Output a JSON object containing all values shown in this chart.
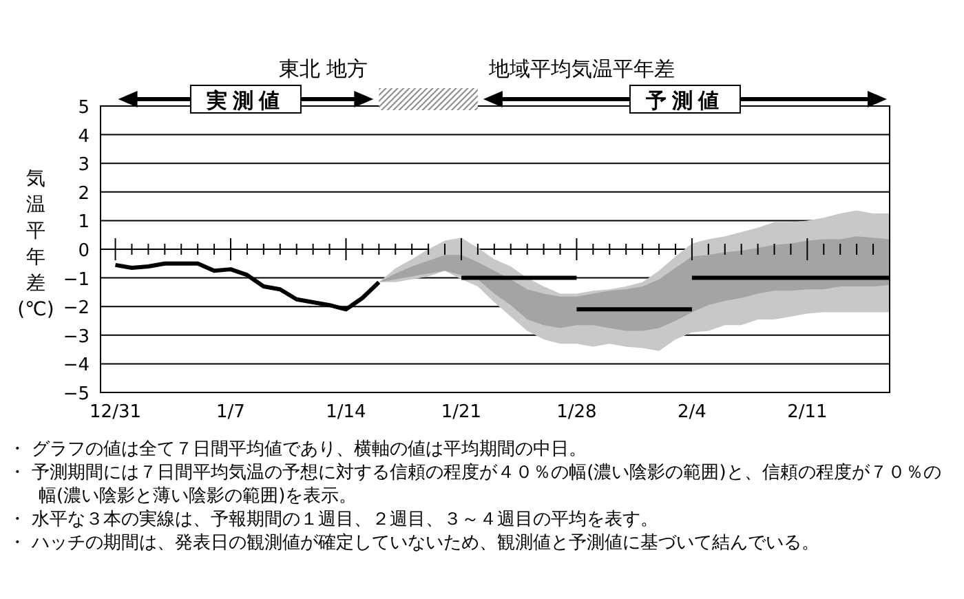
{
  "chart_data": {
    "type": "line",
    "title": "東北 地方",
    "subtitle": "地域平均気温平年差",
    "ylabel": "気温平年差(℃)",
    "categories": [
      "12/31",
      null,
      null,
      null,
      null,
      null,
      null,
      "1/7",
      null,
      null,
      null,
      null,
      null,
      null,
      "1/14",
      null,
      null,
      null,
      null,
      null,
      null,
      "1/21",
      null,
      null,
      null,
      null,
      null,
      null,
      "1/28",
      null,
      null,
      null,
      null,
      null,
      null,
      "2/4",
      null,
      null,
      null,
      null,
      null,
      null,
      "2/11",
      null,
      null,
      null,
      null,
      null
    ],
    "ylim": [
      -5,
      5
    ],
    "yticks": [
      {
        "value": -5,
        "label": "−5"
      },
      {
        "value": -4,
        "label": "−4"
      },
      {
        "value": -3,
        "label": "−3"
      },
      {
        "value": -2,
        "label": "−2"
      },
      {
        "value": -1,
        "label": "−1"
      },
      0,
      1,
      2,
      3,
      4,
      5
    ],
    "grid": "y",
    "series": [
      {
        "type": "line",
        "color": "#c8c8c8",
        "values": [
          null,
          null,
          null,
          null,
          null,
          null,
          null,
          null,
          null,
          null,
          null,
          null,
          null,
          null,
          null,
          null,
          null,
          null,
          null,
          null,
          null,
          null,
          null,
          null,
          null,
          null,
          null,
          null,
          null,
          null,
          null,
          null,
          null,
          null,
          null,
          null,
          null,
          null,
          null,
          null,
          null,
          null,
          null,
          null,
          null,
          null,
          null,
          null
        ],
        "upper": [
          null,
          null,
          null,
          null,
          null,
          null,
          null,
          null,
          null,
          null,
          null,
          null,
          null,
          null,
          null,
          null,
          -1.15,
          -0.67,
          -0.35,
          0.0,
          0.3,
          0.4,
          0.05,
          -0.35,
          -0.6,
          -1.0,
          -1.3,
          -1.55,
          -1.55,
          -1.45,
          -1.4,
          -1.3,
          -1.15,
          -0.75,
          -0.25,
          0.2,
          0.35,
          0.45,
          0.6,
          0.75,
          0.95,
          0.95,
          1.0,
          1.1,
          1.25,
          1.35,
          1.25,
          1.25
        ],
        "lower": [
          null,
          null,
          null,
          null,
          null,
          null,
          null,
          null,
          null,
          null,
          null,
          null,
          null,
          null,
          null,
          null,
          -1.15,
          -1.15,
          -1.05,
          -0.95,
          -0.75,
          -1.05,
          -1.3,
          -1.85,
          -2.35,
          -2.85,
          -3.15,
          -3.3,
          -3.3,
          -3.4,
          -3.3,
          -3.4,
          -3.45,
          -3.55,
          -3.15,
          -2.9,
          -2.85,
          -2.65,
          -2.65,
          -2.45,
          -2.45,
          -2.35,
          -2.25,
          -2.2,
          -2.2,
          -2.2,
          -2.2,
          -2.2
        ]
      },
      {
        "type": "line",
        "color": "#a4a4a4",
        "values": [
          null,
          null,
          null,
          null,
          null,
          null,
          null,
          null,
          null,
          null,
          null,
          null,
          null,
          null,
          null,
          null,
          null,
          null,
          null,
          null,
          null,
          null,
          null,
          null,
          null,
          null,
          null,
          null,
          null,
          null,
          null,
          null,
          null,
          null,
          null,
          null,
          null,
          null,
          null,
          null,
          null,
          null,
          null,
          null,
          null,
          null,
          null,
          null
        ],
        "upper": [
          null,
          null,
          null,
          null,
          null,
          null,
          null,
          null,
          null,
          null,
          null,
          null,
          null,
          null,
          null,
          null,
          -1.15,
          -0.85,
          -0.6,
          -0.4,
          -0.2,
          -0.2,
          -0.45,
          -0.75,
          -1.05,
          -1.4,
          -1.55,
          -1.65,
          -1.65,
          -1.55,
          -1.45,
          -1.4,
          -1.3,
          -1.05,
          -0.65,
          -0.25,
          -0.2,
          -0.1,
          -0.05,
          0.05,
          0.15,
          0.2,
          0.3,
          0.35,
          0.35,
          0.45,
          0.4,
          0.35
        ],
        "lower": [
          null,
          null,
          null,
          null,
          null,
          null,
          null,
          null,
          null,
          null,
          null,
          null,
          null,
          null,
          null,
          null,
          -1.15,
          -1.05,
          -0.95,
          -0.85,
          -0.75,
          -0.9,
          -1.05,
          -1.55,
          -1.95,
          -2.45,
          -2.65,
          -2.75,
          -2.65,
          -2.65,
          -2.75,
          -2.85,
          -2.85,
          -2.75,
          -2.5,
          -2.2,
          -1.95,
          -1.8,
          -1.7,
          -1.55,
          -1.45,
          -1.45,
          -1.4,
          -1.4,
          -1.3,
          -1.3,
          -1.3,
          -1.25
        ]
      },
      {
        "color": "#000000",
        "values": [
          -0.55,
          -0.65,
          -0.6,
          -0.5,
          -0.5,
          -0.5,
          -0.75,
          -0.7,
          -0.9,
          -1.3,
          -1.4,
          -1.75,
          -1.85,
          -1.95,
          -2.1,
          -1.7,
          -1.15,
          null,
          null,
          null,
          null,
          null,
          null,
          null,
          null,
          null,
          null,
          null,
          null,
          null,
          null,
          null,
          null,
          null,
          null,
          null,
          null,
          null,
          null,
          null,
          null,
          null,
          null,
          null,
          null,
          null,
          null,
          null
        ]
      },
      {
        "color": "#000000",
        "values": [
          null,
          null,
          null,
          null,
          null,
          null,
          null,
          null,
          null,
          null,
          null,
          null,
          null,
          null,
          null,
          null,
          null,
          null,
          null,
          null,
          null,
          -1,
          -1,
          -1,
          -1,
          -1,
          -1,
          -1,
          -1,
          null,
          null,
          null,
          null,
          null,
          null,
          null,
          null,
          null,
          null,
          null,
          null,
          null,
          null,
          null,
          null,
          null,
          null,
          null
        ]
      },
      {
        "color": "#000000",
        "values": [
          null,
          null,
          null,
          null,
          null,
          null,
          null,
          null,
          null,
          null,
          null,
          null,
          null,
          null,
          null,
          null,
          null,
          null,
          null,
          null,
          null,
          null,
          null,
          null,
          null,
          null,
          null,
          null,
          -2.1,
          -2.1,
          -2.1,
          -2.1,
          -2.1,
          -2.1,
          -2.1,
          -2.1,
          null,
          null,
          null,
          null,
          null,
          null,
          null,
          null,
          null,
          null,
          null,
          null
        ]
      },
      {
        "color": "#000000",
        "values": [
          null,
          null,
          null,
          null,
          null,
          null,
          null,
          null,
          null,
          null,
          null,
          null,
          null,
          null,
          null,
          null,
          null,
          null,
          null,
          null,
          null,
          null,
          null,
          null,
          null,
          null,
          null,
          null,
          null,
          null,
          null,
          null,
          null,
          null,
          null,
          -1,
          -1,
          -1,
          -1,
          -1,
          -1,
          -1,
          -1,
          -1,
          -1,
          -1,
          -1,
          -1
        ]
      }
    ],
    "annotations": [
      "実測値",
      "予測値",
      "・ グラフの値は全て７日間平均値であり、横軸の値は平均期間の中日。",
      "・ 予測期間には７日間平均気温の予想に対する信頼の程度が４０％の幅(濃い陰影の範囲)と、信頼の程度が７０％の幅(濃い陰影と薄い陰影の範囲)を表示。",
      "・ 水平な３本の実線は、予報期間の１週目、２週目、３～４週目の平均を表す。",
      "・ ハッチの期間は、発表日の観測値が確定していないため、観測値と予測値に基づいて結んでいる。"
    ]
  }
}
